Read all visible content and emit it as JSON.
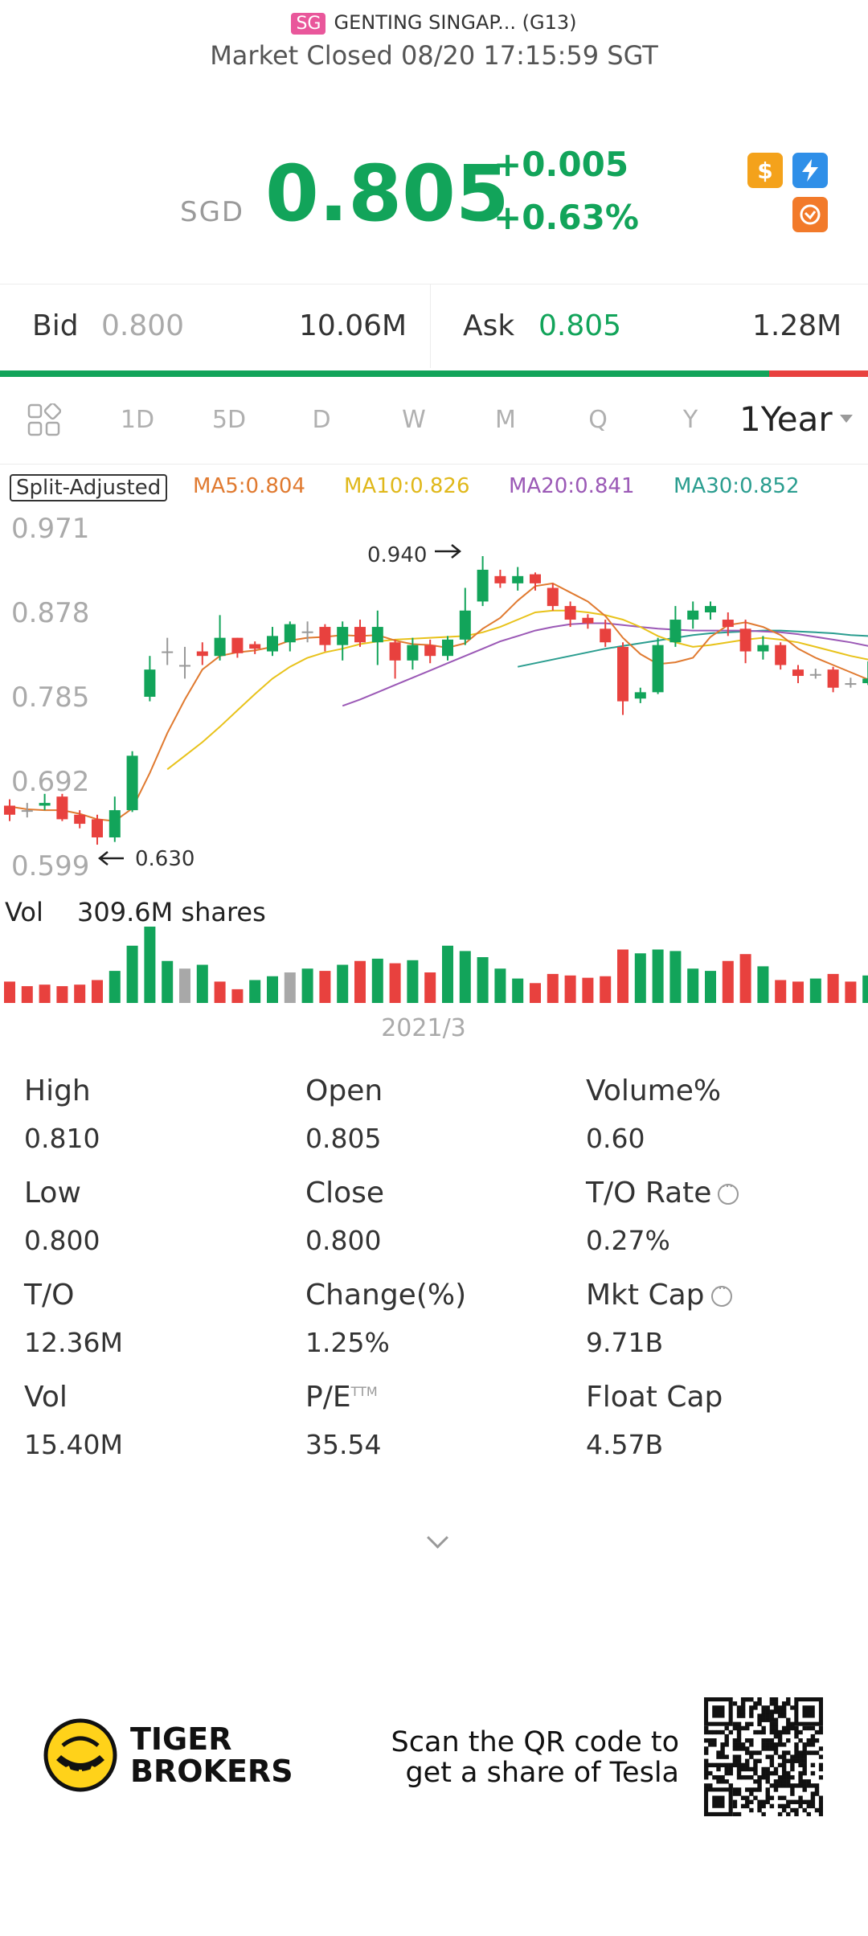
{
  "header": {
    "market_badge": "SG",
    "title": "GENTING SINGAP... (G13)",
    "status": "Market Closed 08/20 17:15:59 SGT"
  },
  "quote": {
    "currency": "SGD",
    "price": "0.805",
    "change": "+0.005",
    "change_pct": "+0.63%",
    "icons": [
      "dollar-badge-icon",
      "lightning-badge-icon",
      "swap-badge-icon"
    ],
    "up_color": "#12a45a",
    "down_color": "#e8413e"
  },
  "bid_ask": {
    "bid_label": "Bid",
    "bid_price": "0.800",
    "bid_size": "10.06M",
    "ask_label": "Ask",
    "ask_price": "0.805",
    "ask_size": "1.28M",
    "bid_ratio": 0.886
  },
  "tabs": {
    "items": [
      "1D",
      "5D",
      "D",
      "W",
      "M",
      "Q",
      "Y"
    ],
    "active": "1Year"
  },
  "chart_legend": {
    "split": "Split-Adjusted",
    "ma5": "MA5:0.804",
    "ma10": "MA10:0.826",
    "ma20": "MA20:0.841",
    "ma30": "MA30:0.852",
    "ma5_color": "#e07a30",
    "ma10_color": "#e8c21a",
    "ma20_color": "#9b59b6",
    "ma30_color": "#2a9d8f"
  },
  "chart_data": {
    "type": "candlestick",
    "ylim": [
      0.599,
      0.971
    ],
    "y_ticks": [
      "0.971",
      "0.878",
      "0.785",
      "0.692",
      "0.599"
    ],
    "annotation_high": "0.940",
    "annotation_low": "0.630",
    "x_label": "2021/3",
    "candles": [
      {
        "o": 0.665,
        "c": 0.655,
        "h": 0.672,
        "l": 0.648
      },
      {
        "o": 0.66,
        "c": 0.66,
        "h": 0.668,
        "l": 0.652
      },
      {
        "o": 0.665,
        "c": 0.668,
        "h": 0.678,
        "l": 0.66
      },
      {
        "o": 0.675,
        "c": 0.65,
        "h": 0.678,
        "l": 0.648
      },
      {
        "o": 0.655,
        "c": 0.645,
        "h": 0.66,
        "l": 0.64
      },
      {
        "o": 0.65,
        "c": 0.63,
        "h": 0.655,
        "l": 0.622
      },
      {
        "o": 0.63,
        "c": 0.66,
        "h": 0.675,
        "l": 0.625
      },
      {
        "o": 0.66,
        "c": 0.72,
        "h": 0.725,
        "l": 0.658
      },
      {
        "o": 0.785,
        "c": 0.815,
        "h": 0.83,
        "l": 0.78
      },
      {
        "o": 0.835,
        "c": 0.835,
        "h": 0.85,
        "l": 0.82
      },
      {
        "o": 0.82,
        "c": 0.82,
        "h": 0.84,
        "l": 0.805
      },
      {
        "o": 0.835,
        "c": 0.83,
        "h": 0.845,
        "l": 0.82
      },
      {
        "o": 0.83,
        "c": 0.85,
        "h": 0.875,
        "l": 0.825
      },
      {
        "o": 0.85,
        "c": 0.833,
        "h": 0.85,
        "l": 0.828
      },
      {
        "o": 0.843,
        "c": 0.838,
        "h": 0.846,
        "l": 0.832
      },
      {
        "o": 0.835,
        "c": 0.852,
        "h": 0.862,
        "l": 0.83
      },
      {
        "o": 0.845,
        "c": 0.865,
        "h": 0.868,
        "l": 0.835
      },
      {
        "o": 0.857,
        "c": 0.857,
        "h": 0.868,
        "l": 0.845
      },
      {
        "o": 0.862,
        "c": 0.842,
        "h": 0.865,
        "l": 0.835
      },
      {
        "o": 0.842,
        "c": 0.862,
        "h": 0.868,
        "l": 0.825
      },
      {
        "o": 0.862,
        "c": 0.845,
        "h": 0.87,
        "l": 0.84
      },
      {
        "o": 0.845,
        "c": 0.862,
        "h": 0.88,
        "l": 0.82
      },
      {
        "o": 0.845,
        "c": 0.825,
        "h": 0.848,
        "l": 0.805
      },
      {
        "o": 0.825,
        "c": 0.842,
        "h": 0.85,
        "l": 0.815
      },
      {
        "o": 0.842,
        "c": 0.83,
        "h": 0.848,
        "l": 0.822
      },
      {
        "o": 0.83,
        "c": 0.848,
        "h": 0.852,
        "l": 0.825
      },
      {
        "o": 0.848,
        "c": 0.88,
        "h": 0.905,
        "l": 0.842
      },
      {
        "o": 0.89,
        "c": 0.925,
        "h": 0.94,
        "l": 0.885
      },
      {
        "o": 0.918,
        "c": 0.91,
        "h": 0.925,
        "l": 0.905
      },
      {
        "o": 0.91,
        "c": 0.918,
        "h": 0.928,
        "l": 0.902
      },
      {
        "o": 0.92,
        "c": 0.91,
        "h": 0.922,
        "l": 0.902
      },
      {
        "o": 0.905,
        "c": 0.885,
        "h": 0.91,
        "l": 0.88
      },
      {
        "o": 0.885,
        "c": 0.87,
        "h": 0.89,
        "l": 0.862
      },
      {
        "o": 0.872,
        "c": 0.866,
        "h": 0.876,
        "l": 0.86
      },
      {
        "o": 0.86,
        "c": 0.845,
        "h": 0.87,
        "l": 0.84
      },
      {
        "o": 0.84,
        "c": 0.78,
        "h": 0.845,
        "l": 0.765
      },
      {
        "o": 0.783,
        "c": 0.79,
        "h": 0.795,
        "l": 0.778
      },
      {
        "o": 0.79,
        "c": 0.842,
        "h": 0.85,
        "l": 0.788
      },
      {
        "o": 0.845,
        "c": 0.87,
        "h": 0.885,
        "l": 0.84
      },
      {
        "o": 0.87,
        "c": 0.88,
        "h": 0.89,
        "l": 0.86
      },
      {
        "o": 0.878,
        "c": 0.885,
        "h": 0.89,
        "l": 0.87
      },
      {
        "o": 0.87,
        "c": 0.862,
        "h": 0.878,
        "l": 0.852
      },
      {
        "o": 0.86,
        "c": 0.835,
        "h": 0.87,
        "l": 0.822
      },
      {
        "o": 0.835,
        "c": 0.842,
        "h": 0.852,
        "l": 0.826
      },
      {
        "o": 0.842,
        "c": 0.82,
        "h": 0.845,
        "l": 0.815
      },
      {
        "o": 0.815,
        "c": 0.808,
        "h": 0.82,
        "l": 0.8
      },
      {
        "o": 0.81,
        "c": 0.81,
        "h": 0.816,
        "l": 0.805
      },
      {
        "o": 0.815,
        "c": 0.795,
        "h": 0.818,
        "l": 0.79
      },
      {
        "o": 0.8,
        "c": 0.8,
        "h": 0.806,
        "l": 0.795
      },
      {
        "o": 0.8,
        "c": 0.805,
        "h": 0.824,
        "l": 0.798
      }
    ],
    "ma5": [
      0.664,
      0.661,
      0.66,
      0.66,
      0.656,
      0.65,
      0.648,
      0.662,
      0.701,
      0.745,
      0.782,
      0.815,
      0.83,
      0.834,
      0.836,
      0.84,
      0.847,
      0.85,
      0.851,
      0.853,
      0.852,
      0.853,
      0.847,
      0.843,
      0.842,
      0.839,
      0.844,
      0.86,
      0.872,
      0.891,
      0.907,
      0.91,
      0.9,
      0.89,
      0.874,
      0.85,
      0.832,
      0.821,
      0.823,
      0.828,
      0.851,
      0.864,
      0.867,
      0.862,
      0.853,
      0.838,
      0.828,
      0.82,
      0.812,
      0.804
    ],
    "ma10": [
      null,
      null,
      null,
      null,
      null,
      null,
      null,
      null,
      null,
      0.705,
      0.72,
      0.735,
      0.752,
      0.77,
      0.788,
      0.805,
      0.818,
      0.828,
      0.834,
      0.838,
      0.843,
      0.846,
      0.848,
      0.849,
      0.85,
      0.851,
      0.852,
      0.856,
      0.862,
      0.87,
      0.878,
      0.88,
      0.88,
      0.878,
      0.875,
      0.87,
      0.862,
      0.852,
      0.845,
      0.84,
      0.842,
      0.845,
      0.848,
      0.85,
      0.848,
      0.845,
      0.84,
      0.835,
      0.83,
      0.826
    ],
    "ma20": [
      null,
      null,
      null,
      null,
      null,
      null,
      null,
      null,
      null,
      null,
      null,
      null,
      null,
      null,
      null,
      null,
      null,
      null,
      null,
      0.775,
      0.782,
      0.79,
      0.798,
      0.806,
      0.814,
      0.822,
      0.83,
      0.838,
      0.846,
      0.852,
      0.858,
      0.862,
      0.865,
      0.866,
      0.866,
      0.864,
      0.862,
      0.86,
      0.859,
      0.858,
      0.858,
      0.858,
      0.858,
      0.857,
      0.856,
      0.854,
      0.851,
      0.848,
      0.845,
      0.841
    ],
    "ma30": [
      null,
      null,
      null,
      null,
      null,
      null,
      null,
      null,
      null,
      null,
      null,
      null,
      null,
      null,
      null,
      null,
      null,
      null,
      null,
      null,
      null,
      null,
      null,
      null,
      null,
      null,
      null,
      null,
      null,
      0.818,
      0.822,
      0.826,
      0.83,
      0.834,
      0.838,
      0.841,
      0.844,
      0.847,
      0.85,
      0.853,
      0.855,
      0.856,
      0.857,
      0.858,
      0.858,
      0.857,
      0.856,
      0.855,
      0.853,
      0.852
    ],
    "volume_label": "Vol",
    "volume_max": "309.6M shares",
    "volumes": [
      0.28,
      0.22,
      0.24,
      0.22,
      0.24,
      0.3,
      0.42,
      0.75,
      1.0,
      0.55,
      0.45,
      0.5,
      0.28,
      0.18,
      0.3,
      0.35,
      0.4,
      0.45,
      0.42,
      0.5,
      0.55,
      0.58,
      0.52,
      0.56,
      0.4,
      0.75,
      0.68,
      0.6,
      0.45,
      0.32,
      0.26,
      0.38,
      0.36,
      0.33,
      0.35,
      0.7,
      0.65,
      0.7,
      0.68,
      0.45,
      0.42,
      0.55,
      0.64,
      0.48,
      0.3,
      0.28,
      0.32,
      0.38,
      0.28,
      0.36
    ],
    "volume_up": [
      false,
      false,
      false,
      false,
      false,
      false,
      true,
      true,
      true,
      true,
      null,
      true,
      false,
      false,
      true,
      true,
      null,
      true,
      false,
      true,
      false,
      true,
      false,
      true,
      false,
      true,
      true,
      true,
      true,
      true,
      false,
      false,
      false,
      false,
      false,
      false,
      true,
      true,
      true,
      true,
      true,
      false,
      false,
      true,
      false,
      false,
      true,
      false,
      false,
      true
    ]
  },
  "stats": [
    {
      "label": "High",
      "value": "0.810"
    },
    {
      "label": "Open",
      "value": "0.805"
    },
    {
      "label": "Volume%",
      "value": "0.60"
    },
    {
      "label": "Low",
      "value": "0.800"
    },
    {
      "label": "Close",
      "value": "0.800"
    },
    {
      "label": "T/O Rate",
      "value": "0.27%",
      "info": true
    },
    {
      "label": "T/O",
      "value": "12.36M"
    },
    {
      "label": "Change(%)",
      "value": "1.25%"
    },
    {
      "label": "Mkt Cap",
      "value": "9.71B",
      "info": true
    },
    {
      "label": "Vol",
      "value": "15.40M"
    },
    {
      "label": "P/E",
      "sup": "TTM",
      "value": "35.54"
    },
    {
      "label": "Float Cap",
      "value": "4.57B"
    }
  ],
  "footer": {
    "brand_line1": "TIGER",
    "brand_line2": "BROKERS",
    "promo_line1": "Scan the QR code to",
    "promo_line2": "get a share of Tesla"
  }
}
